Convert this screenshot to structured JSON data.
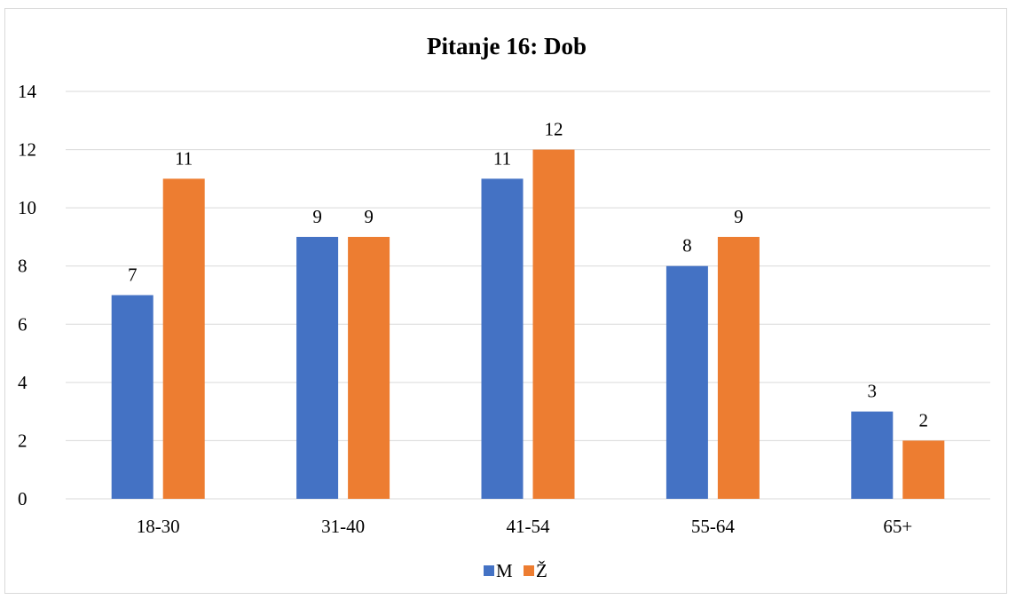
{
  "chart_data": {
    "type": "bar",
    "title": "Pitanje 16: Dob",
    "xlabel": "",
    "ylabel": "",
    "categories": [
      "18-30",
      "31-40",
      "41-54",
      "55-64",
      "65+"
    ],
    "series": [
      {
        "name": "M",
        "values": [
          7,
          9,
          11,
          8,
          3
        ],
        "color": "#4472c4"
      },
      {
        "name": "Ž",
        "values": [
          11,
          9,
          12,
          9,
          2
        ],
        "color": "#ed7d31"
      }
    ],
    "ylim": [
      0,
      14
    ],
    "yticks": [
      0,
      2,
      4,
      6,
      8,
      10,
      12,
      14
    ],
    "grid": true,
    "legend": "bottom",
    "data_labels": true
  }
}
